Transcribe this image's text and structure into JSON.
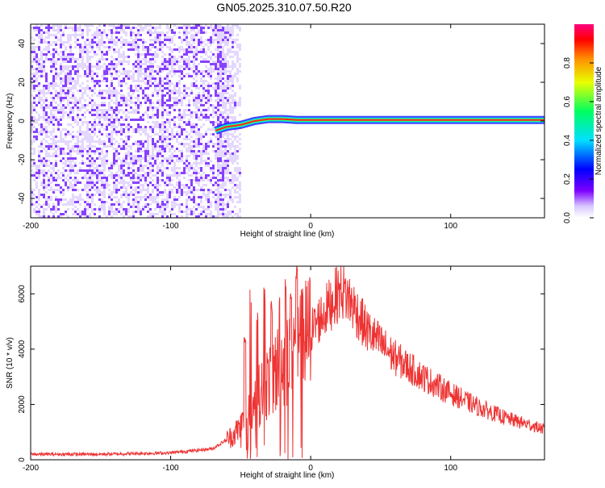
{
  "page_title": "GN05.2025.310.07.50.R20",
  "colors": {
    "spectrogram_noise": "#7b2cff",
    "spectrogram_noise_light": "#d9c8ff",
    "snr_line": "#ee3333",
    "trace_core": "#ff2222"
  },
  "chart_data": [
    {
      "type": "heatmap",
      "title": "GN05.2025.310.07.50.R20",
      "xlabel": "Height of straight line (km)",
      "ylabel": "Frequency (Hz)",
      "xlim": [
        -200,
        167
      ],
      "ylim": [
        -50,
        50
      ],
      "xticks": [
        -200,
        -100,
        0,
        100
      ],
      "yticks": [
        -40,
        -20,
        0,
        20,
        40
      ],
      "colorbar": {
        "label": "Normalized spectral amplitude",
        "range": [
          0.0,
          1.0
        ],
        "ticks": [
          "0.0",
          "0.2",
          "0.4",
          "0.6",
          "0.8"
        ]
      },
      "noise_region": {
        "x_from": -200,
        "x_to": -67
      },
      "trace": [
        {
          "x": -68,
          "y": -5
        },
        {
          "x": -60,
          "y": -3
        },
        {
          "x": -50,
          "y": -2
        },
        {
          "x": -40,
          "y": 0
        },
        {
          "x": -30,
          "y": 1
        },
        {
          "x": -20,
          "y": 1
        },
        {
          "x": -10,
          "y": 0.5
        },
        {
          "x": 0,
          "y": 0.5
        },
        {
          "x": 50,
          "y": 0.5
        },
        {
          "x": 100,
          "y": 0.5
        },
        {
          "x": 167,
          "y": 0.5
        }
      ],
      "grid": false
    },
    {
      "type": "line",
      "xlabel": "Height of straight line (km)",
      "ylabel": "SNR (10 * v/v)",
      "xlim": [
        -200,
        167
      ],
      "ylim": [
        0,
        7000
      ],
      "xticks": [
        -200,
        -100,
        0,
        100
      ],
      "yticks": [
        0,
        2000,
        4000,
        6000
      ],
      "envelope": [
        {
          "x": -200,
          "y": 200
        },
        {
          "x": -150,
          "y": 200
        },
        {
          "x": -100,
          "y": 250
        },
        {
          "x": -70,
          "y": 400
        },
        {
          "x": -55,
          "y": 900
        },
        {
          "x": -45,
          "y": 1500
        },
        {
          "x": -35,
          "y": 2500
        },
        {
          "x": -25,
          "y": 3200
        },
        {
          "x": -15,
          "y": 3800
        },
        {
          "x": -5,
          "y": 4300
        },
        {
          "x": 5,
          "y": 5000
        },
        {
          "x": 15,
          "y": 5700
        },
        {
          "x": 22,
          "y": 6200
        },
        {
          "x": 30,
          "y": 5600
        },
        {
          "x": 40,
          "y": 4700
        },
        {
          "x": 60,
          "y": 3700
        },
        {
          "x": 80,
          "y": 3000
        },
        {
          "x": 100,
          "y": 2400
        },
        {
          "x": 120,
          "y": 1900
        },
        {
          "x": 140,
          "y": 1500
        },
        {
          "x": 167,
          "y": 1100
        }
      ],
      "spikes": [
        {
          "x": -47,
          "y": 4500
        },
        {
          "x": -43,
          "y": 6200
        },
        {
          "x": -38,
          "y": 5500
        },
        {
          "x": -33,
          "y": 6300
        },
        {
          "x": -28,
          "y": 5800
        },
        {
          "x": -22,
          "y": 6000
        },
        {
          "x": -18,
          "y": 6900
        },
        {
          "x": -14,
          "y": 6200
        },
        {
          "x": -10,
          "y": 7000
        },
        {
          "x": -6,
          "y": 6200
        }
      ],
      "grid": false
    }
  ]
}
